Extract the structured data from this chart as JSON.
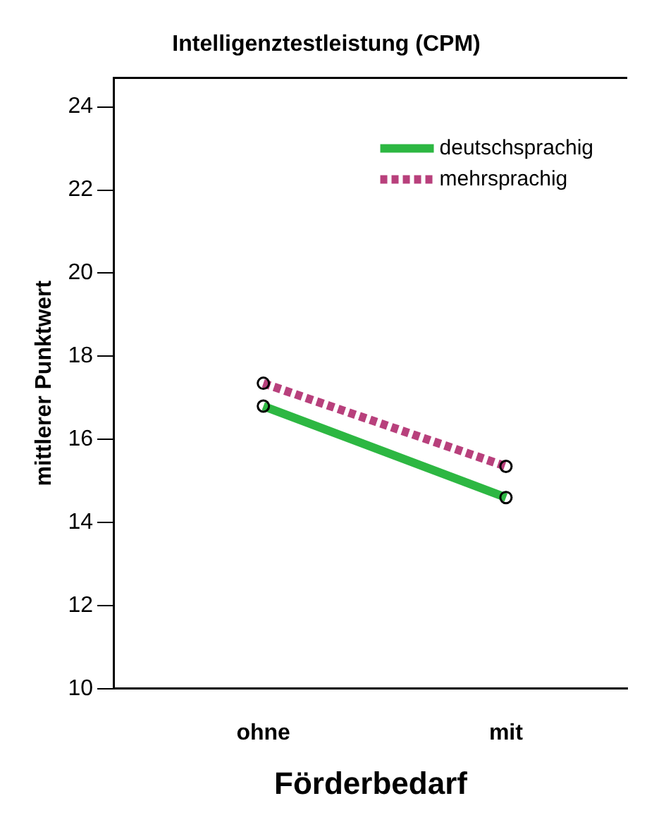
{
  "chart_data": {
    "type": "line",
    "title": "Intelligenztestleistung (CPM)",
    "xlabel": "Förderbedarf",
    "ylabel": "mittlerer Punktwert",
    "categories": [
      "ohne",
      "mit"
    ],
    "series": [
      {
        "name": "deutschsprachig",
        "color": "#2db742",
        "values": [
          16.8,
          14.6
        ],
        "line_style": "solid"
      },
      {
        "name": "mehrsprachig",
        "color": "#b8407c",
        "values": [
          17.35,
          15.35
        ],
        "line_style": "dotted"
      }
    ],
    "ylim": [
      10,
      24.7
    ],
    "yticks": [
      10,
      12,
      14,
      16,
      18,
      20,
      22,
      24
    ],
    "grid": false,
    "legend": "top right",
    "marker": "circle"
  }
}
